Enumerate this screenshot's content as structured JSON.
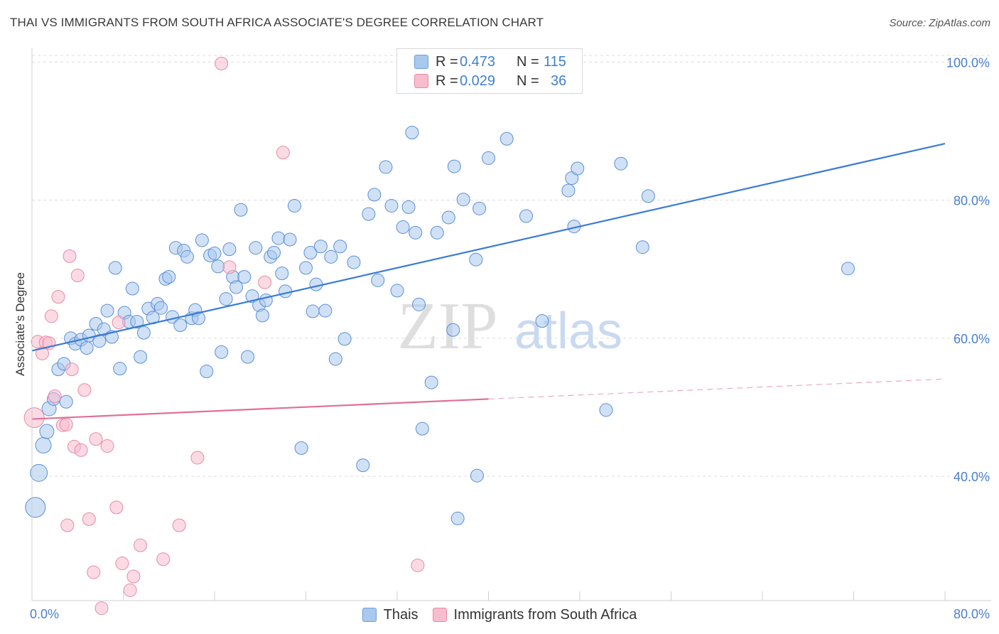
{
  "header": {
    "title": "THAI VS IMMIGRANTS FROM SOUTH AFRICA ASSOCIATE'S DEGREE CORRELATION CHART",
    "source": "Source: ZipAtlas.com"
  },
  "watermark": {
    "zip": "ZIP",
    "atlas": "atlas"
  },
  "legend_top": {
    "rows": [
      {
        "r_label": "R =",
        "r_value": "0.473",
        "n_label": "N =",
        "n_value": "115",
        "color": "#a9c8ee",
        "border": "#6f9fd8"
      },
      {
        "r_label": "R =",
        "r_value": "0.029",
        "n_label": "N =",
        "n_value": "36",
        "color": "#f7bccd",
        "border": "#e88aa6"
      }
    ]
  },
  "legend_bottom": {
    "items": [
      {
        "label": "Thais",
        "color": "#a9c8ee",
        "border": "#6f9fd8"
      },
      {
        "label": "Immigrants from South Africa",
        "color": "#f7bccd",
        "border": "#e88aa6"
      }
    ]
  },
  "chart_data": {
    "type": "scatter",
    "ylabel": "Associate's Degree",
    "xlabel": "",
    "xlim": [
      0,
      80
    ],
    "ylim": [
      22,
      102
    ],
    "x_tick_labels": [
      "0.0%",
      "80.0%"
    ],
    "y_ticks": [
      {
        "value": 40,
        "label": "40.0%"
      },
      {
        "value": 60,
        "label": "60.0%"
      },
      {
        "value": 80,
        "label": "80.0%"
      },
      {
        "value": 100,
        "label": "100.0%"
      }
    ],
    "grid": true,
    "accent_colors": {
      "blue": "#3a7bd5",
      "pink": "#e0709a",
      "tick_label": "#4a7fcf"
    },
    "series": [
      {
        "name": "Thais",
        "color": "#a9c8ee",
        "edge": "#5b8fd6",
        "trend": {
          "x": [
            0,
            80
          ],
          "y": [
            58.2,
            88.2
          ],
          "color": "#3a7bd5"
        },
        "points": [
          [
            0.3,
            35.5,
            14
          ],
          [
            0.6,
            40.5,
            12
          ],
          [
            1.0,
            44.5,
            11
          ],
          [
            1.3,
            46.5,
            10
          ],
          [
            1.5,
            49.8,
            10
          ],
          [
            1.9,
            51.2,
            9
          ],
          [
            2.3,
            55.5,
            9
          ],
          [
            2.8,
            56.3,
            9
          ],
          [
            3.0,
            50.8,
            9
          ],
          [
            3.4,
            60.0,
            9
          ],
          [
            3.8,
            59.2,
            9
          ],
          [
            4.3,
            59.8,
            9
          ],
          [
            4.8,
            58.6,
            9
          ],
          [
            5.0,
            60.4,
            9
          ],
          [
            5.6,
            62.1,
            9
          ],
          [
            5.9,
            59.6,
            9
          ],
          [
            6.3,
            61.3,
            9
          ],
          [
            6.6,
            64.0,
            9
          ],
          [
            7.0,
            60.2,
            9
          ],
          [
            7.3,
            70.2,
            9
          ],
          [
            7.7,
            55.6,
            9
          ],
          [
            8.1,
            63.7,
            9
          ],
          [
            8.5,
            62.4,
            9
          ],
          [
            8.8,
            67.2,
            9
          ],
          [
            9.2,
            62.4,
            9
          ],
          [
            9.5,
            57.3,
            9
          ],
          [
            9.8,
            60.8,
            9
          ],
          [
            10.2,
            64.3,
            9
          ],
          [
            10.6,
            63.0,
            9
          ],
          [
            11.0,
            65.0,
            9
          ],
          [
            11.3,
            64.4,
            9
          ],
          [
            11.7,
            68.6,
            9
          ],
          [
            12.0,
            68.9,
            9
          ],
          [
            12.3,
            63.1,
            9
          ],
          [
            12.6,
            73.1,
            9
          ],
          [
            13.0,
            61.9,
            9
          ],
          [
            13.3,
            72.7,
            9
          ],
          [
            13.6,
            71.8,
            9
          ],
          [
            14.0,
            62.9,
            9
          ],
          [
            14.3,
            64.1,
            9
          ],
          [
            14.6,
            62.9,
            9
          ],
          [
            14.9,
            74.2,
            9
          ],
          [
            15.3,
            55.2,
            9
          ],
          [
            15.6,
            72.0,
            9
          ],
          [
            16.0,
            72.3,
            9
          ],
          [
            16.3,
            70.4,
            9
          ],
          [
            16.6,
            58.0,
            9
          ],
          [
            17.0,
            65.7,
            9
          ],
          [
            17.3,
            72.9,
            9
          ],
          [
            17.6,
            68.9,
            9
          ],
          [
            17.9,
            67.4,
            9
          ],
          [
            18.3,
            78.6,
            9
          ],
          [
            18.6,
            68.9,
            9
          ],
          [
            18.9,
            57.3,
            9
          ],
          [
            19.3,
            66.1,
            9
          ],
          [
            19.6,
            73.1,
            9
          ],
          [
            19.9,
            64.8,
            9
          ],
          [
            20.2,
            63.3,
            9
          ],
          [
            20.5,
            65.5,
            9
          ],
          [
            20.9,
            71.8,
            9
          ],
          [
            21.2,
            72.4,
            9
          ],
          [
            21.6,
            74.5,
            9
          ],
          [
            21.9,
            69.4,
            9
          ],
          [
            22.2,
            66.8,
            9
          ],
          [
            22.6,
            74.3,
            9
          ],
          [
            23.0,
            79.2,
            9
          ],
          [
            23.6,
            44.1,
            9
          ],
          [
            24.0,
            70.2,
            9
          ],
          [
            24.4,
            72.4,
            9
          ],
          [
            24.6,
            63.9,
            9
          ],
          [
            24.9,
            67.8,
            9
          ],
          [
            25.3,
            73.3,
            9
          ],
          [
            25.7,
            64.0,
            9
          ],
          [
            26.2,
            71.8,
            9
          ],
          [
            26.6,
            57.0,
            9
          ],
          [
            27.0,
            73.3,
            9
          ],
          [
            27.4,
            59.9,
            9
          ],
          [
            28.2,
            71.0,
            9
          ],
          [
            29.0,
            41.6,
            9
          ],
          [
            29.5,
            78.0,
            9
          ],
          [
            30.0,
            80.8,
            9
          ],
          [
            30.3,
            68.4,
            9
          ],
          [
            31.0,
            84.8,
            9
          ],
          [
            31.5,
            79.2,
            9
          ],
          [
            32.0,
            66.9,
            9
          ],
          [
            32.5,
            76.1,
            9
          ],
          [
            33.0,
            79.0,
            9
          ],
          [
            33.3,
            89.8,
            9
          ],
          [
            33.6,
            75.3,
            9
          ],
          [
            33.9,
            64.9,
            9
          ],
          [
            34.2,
            46.9,
            9
          ],
          [
            35.0,
            53.6,
            9
          ],
          [
            35.5,
            75.3,
            9
          ],
          [
            36.5,
            77.5,
            9
          ],
          [
            36.9,
            61.2,
            9
          ],
          [
            37.0,
            84.9,
            9
          ],
          [
            37.3,
            33.9,
            9
          ],
          [
            37.8,
            80.1,
            9
          ],
          [
            38.9,
            71.4,
            9
          ],
          [
            39.0,
            40.1,
            9
          ],
          [
            39.2,
            78.8,
            9
          ],
          [
            40.0,
            86.1,
            9
          ],
          [
            41.6,
            88.9,
            9
          ],
          [
            43.3,
            77.7,
            9
          ],
          [
            44.7,
            62.5,
            9
          ],
          [
            47.0,
            81.4,
            9
          ],
          [
            47.3,
            83.2,
            9
          ],
          [
            47.5,
            76.2,
            9
          ],
          [
            47.8,
            84.6,
            9
          ],
          [
            50.3,
            49.6,
            9
          ],
          [
            51.6,
            85.3,
            9
          ],
          [
            53.5,
            73.2,
            9
          ],
          [
            54.0,
            80.6,
            9
          ],
          [
            71.5,
            70.1,
            9
          ]
        ]
      },
      {
        "name": "Immigrants from South Africa",
        "color": "#f7bccd",
        "edge": "#e88aa6",
        "trend": {
          "x": [
            0,
            40
          ],
          "y": [
            48.3,
            51.2
          ],
          "color": "#e0709a"
        },
        "trend_ext": {
          "x": [
            40,
            80
          ],
          "y": [
            51.2,
            54.1
          ],
          "color": "#e0709a"
        },
        "points": [
          [
            0.2,
            48.5,
            14
          ],
          [
            0.5,
            59.5,
            9
          ],
          [
            0.9,
            57.8,
            9
          ],
          [
            1.2,
            59.4,
            9
          ],
          [
            1.5,
            59.3,
            9
          ],
          [
            1.7,
            63.2,
            9
          ],
          [
            2.0,
            51.6,
            9
          ],
          [
            2.3,
            66.0,
            9
          ],
          [
            2.7,
            47.4,
            9
          ],
          [
            3.0,
            47.5,
            9
          ],
          [
            3.1,
            32.9,
            9
          ],
          [
            3.3,
            71.9,
            9
          ],
          [
            3.5,
            55.5,
            9
          ],
          [
            3.7,
            44.3,
            9
          ],
          [
            4.0,
            69.1,
            9
          ],
          [
            4.3,
            43.8,
            9
          ],
          [
            4.6,
            52.5,
            9
          ],
          [
            5.0,
            33.8,
            9
          ],
          [
            5.4,
            26.1,
            9
          ],
          [
            5.6,
            45.4,
            9
          ],
          [
            6.1,
            20.9,
            9
          ],
          [
            6.6,
            44.4,
            9
          ],
          [
            7.4,
            35.5,
            9
          ],
          [
            7.6,
            62.3,
            9
          ],
          [
            7.9,
            27.4,
            9
          ],
          [
            8.6,
            23.5,
            9
          ],
          [
            8.9,
            25.5,
            9
          ],
          [
            9.5,
            30.0,
            9
          ],
          [
            11.5,
            28.0,
            9
          ],
          [
            12.9,
            32.9,
            9
          ],
          [
            14.5,
            42.7,
            9
          ],
          [
            16.6,
            99.8,
            9
          ],
          [
            17.3,
            70.3,
            9
          ],
          [
            20.4,
            68.1,
            9
          ],
          [
            22.0,
            86.9,
            9
          ],
          [
            33.8,
            27.1,
            9
          ]
        ]
      }
    ]
  }
}
